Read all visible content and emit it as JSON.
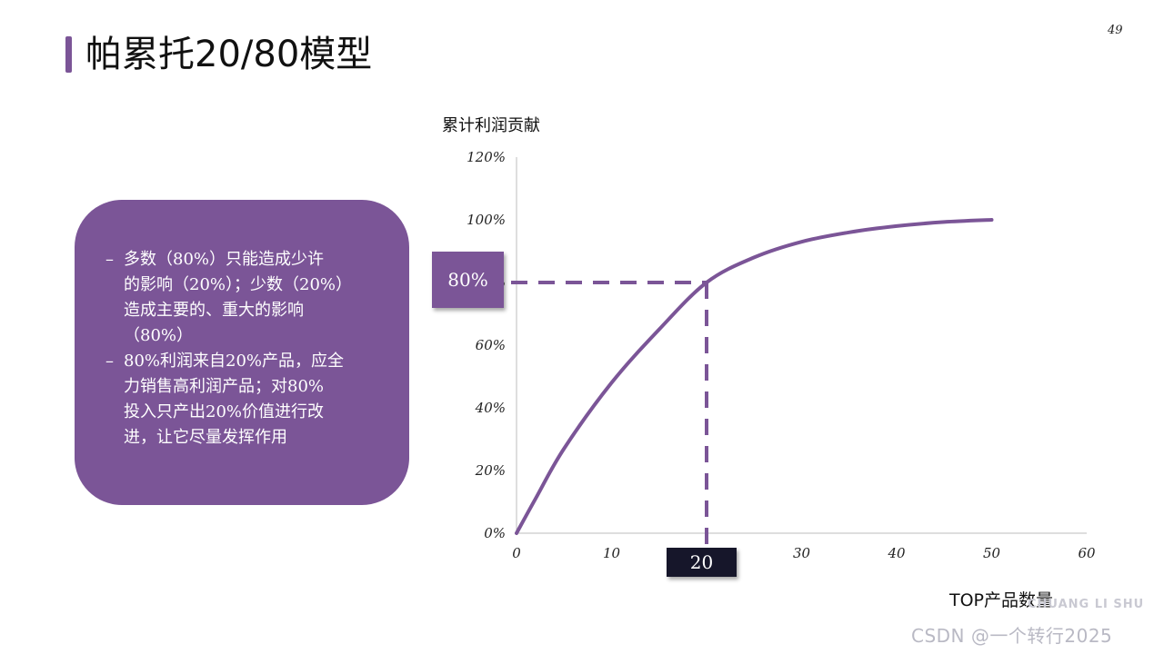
{
  "slide": {
    "title": "帕累托20/80模型",
    "page_number": "49"
  },
  "callout": {
    "bullets": [
      {
        "dash": "–",
        "text": "多数（80%）只能造成少许\n的影响（20%）；少数（20%）\n造成主要的、重大的影响\n（80%）"
      },
      {
        "dash": "–",
        "text": "80%利润来自20%产品，应全\n力销售高利润产品；对80%\n投入只产出20%价值进行改\n进，让它尽量发挥作用"
      }
    ],
    "color": "#7b5597"
  },
  "chart_data": {
    "type": "line",
    "ylabel": "累计利润贡献",
    "xlabel": "TOP产品数量",
    "xlim": [
      0,
      60
    ],
    "ylim": [
      0,
      120
    ],
    "x_ticks": [
      "0",
      "10",
      "20",
      "30",
      "40",
      "50",
      "60"
    ],
    "y_ticks": [
      "0%",
      "20%",
      "40%",
      "60%",
      "80%",
      "100%",
      "120%"
    ],
    "series": [
      {
        "color": "#7b5597",
        "x": [
          0,
          2,
          5,
          10,
          15,
          20,
          25,
          30,
          35,
          40,
          45,
          50
        ],
        "y": [
          0,
          11,
          27,
          48,
          65,
          80,
          88,
          93,
          96,
          98,
          99.3,
          100
        ]
      }
    ],
    "reference": {
      "x": 20,
      "y": 80,
      "x_label": "20",
      "y_label": "80%"
    },
    "grid": false
  },
  "watermark": {
    "line1": "CHUANG LI SHU",
    "line2": "CSDN @一个转行2025"
  }
}
